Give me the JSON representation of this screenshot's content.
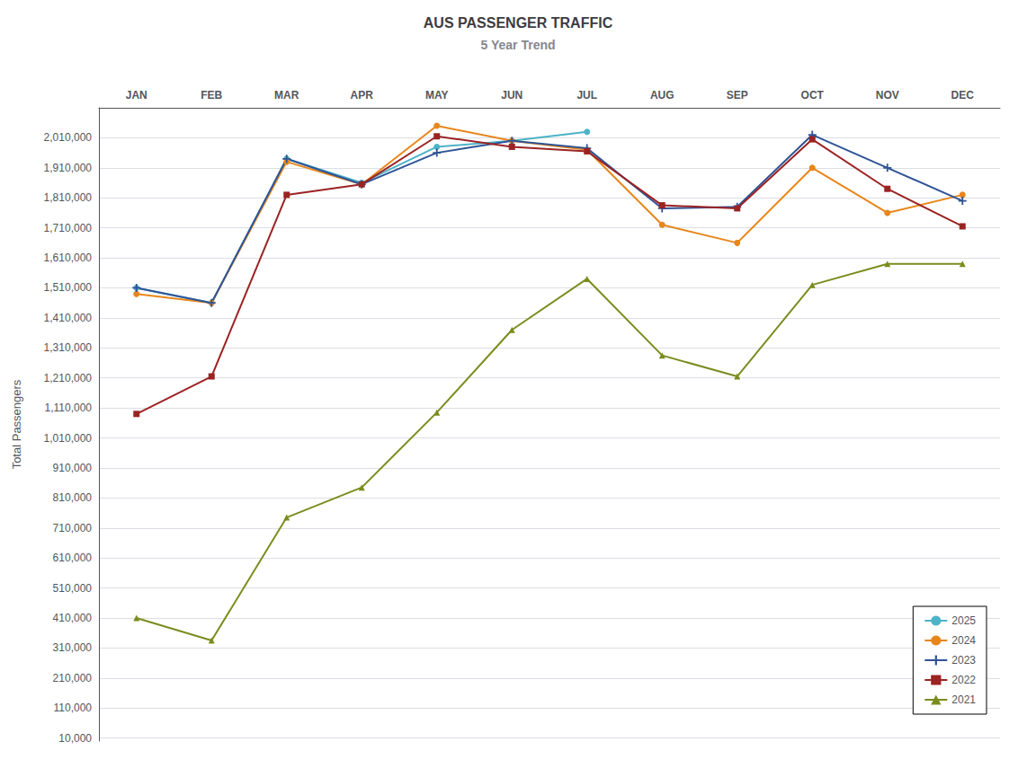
{
  "chart_data": {
    "type": "line",
    "title": "AUS PASSENGER TRAFFIC",
    "subtitle": "5 Year Trend",
    "y_label": "Total Passengers",
    "categories": [
      "JAN",
      "FEB",
      "MAR",
      "APR",
      "MAY",
      "JUN",
      "JUL",
      "AUG",
      "SEP",
      "OCT",
      "NOV",
      "DEC"
    ],
    "series": [
      {
        "name": "2025",
        "color": "#4DB3C8",
        "marker": "circle",
        "values": [
          1510000,
          1460000,
          1940000,
          1860000,
          1980000,
          2000000,
          2030000,
          null,
          null,
          null,
          null,
          null
        ]
      },
      {
        "name": "2024",
        "color": "#E8861A",
        "marker": "circle",
        "values": [
          1490000,
          1460000,
          1930000,
          1855000,
          2050000,
          2000000,
          1970000,
          1720000,
          1660000,
          1910000,
          1760000,
          1820000
        ]
      },
      {
        "name": "2023",
        "color": "#2F5496",
        "marker": "plus",
        "values": [
          1510000,
          1460000,
          1940000,
          1855000,
          1960000,
          2000000,
          1975000,
          1775000,
          1780000,
          2020000,
          1910000,
          1800000
        ]
      },
      {
        "name": "2022",
        "color": "#9B2323",
        "marker": "square",
        "values": [
          1090000,
          1215000,
          1820000,
          1855000,
          2015000,
          1980000,
          1965000,
          1785000,
          1775000,
          2005000,
          1840000,
          1715000
        ]
      },
      {
        "name": "2021",
        "color": "#7B8C1E",
        "marker": "triangle",
        "values": [
          410000,
          335000,
          745000,
          845000,
          1095000,
          1370000,
          1540000,
          1285000,
          1215000,
          1520000,
          1590000,
          1590000
        ]
      }
    ],
    "ylim": [
      0,
      2110000
    ],
    "yticks": [
      {
        "value": 10000,
        "label": "10,000"
      },
      {
        "value": 110000,
        "label": "110,000"
      },
      {
        "value": 210000,
        "label": "210,000"
      },
      {
        "value": 310000,
        "label": "310,000"
      },
      {
        "value": 410000,
        "label": "410,000"
      },
      {
        "value": 510000,
        "label": "510,000"
      },
      {
        "value": 610000,
        "label": "610,000"
      },
      {
        "value": 710000,
        "label": "710,000"
      },
      {
        "value": 810000,
        "label": "810,000"
      },
      {
        "value": 910000,
        "label": "910,000"
      },
      {
        "value": 1010000,
        "label": "1,010,000"
      },
      {
        "value": 1110000,
        "label": "1,110,000"
      },
      {
        "value": 1210000,
        "label": "1,210,000"
      },
      {
        "value": 1310000,
        "label": "1,310,000"
      },
      {
        "value": 1410000,
        "label": "1,410,000"
      },
      {
        "value": 1510000,
        "label": "1,510,000"
      },
      {
        "value": 1610000,
        "label": "1,610,000"
      },
      {
        "value": 1710000,
        "label": "1,710,000"
      },
      {
        "value": 1810000,
        "label": "1,810,000"
      },
      {
        "value": 1910000,
        "label": "1,910,000"
      },
      {
        "value": 2010000,
        "label": "2,010,000"
      }
    ],
    "grid": true,
    "legend": "lower right"
  }
}
